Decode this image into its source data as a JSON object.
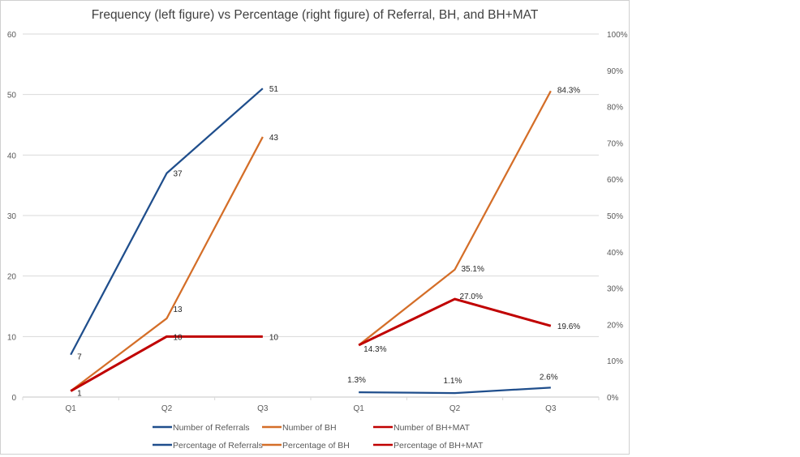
{
  "chart_data": {
    "type": "line",
    "title": "Frequency (left figure) vs Percentage (right figure) of Referral, BH, and BH+MAT",
    "categories": [
      "Q1",
      "Q2",
      "Q3",
      "Q1",
      "Q2",
      "Q3"
    ],
    "left_axis": {
      "ylim": [
        0,
        60
      ],
      "ticks": [
        "0",
        "10",
        "20",
        "30",
        "40",
        "50",
        "60"
      ],
      "grid": true
    },
    "right_axis": {
      "ylim": [
        0,
        100
      ],
      "ticks": [
        "0%",
        "10%",
        "20%",
        "30%",
        "40%",
        "50%",
        "60%",
        "70%",
        "80%",
        "90%",
        "100%"
      ]
    },
    "series": [
      {
        "name": "Number of Referrals",
        "axis": "left",
        "color": "#1F4E8C",
        "x_index": [
          0,
          1,
          2
        ],
        "values": [
          7,
          37,
          51
        ],
        "labels": [
          "7",
          "37",
          "51"
        ]
      },
      {
        "name": "Number of BH",
        "axis": "left",
        "color": "#D46E28",
        "x_index": [
          0,
          1,
          2
        ],
        "values": [
          1,
          13,
          43
        ],
        "labels": [
          "",
          "13",
          "43"
        ]
      },
      {
        "name": "Number of BH+MAT",
        "axis": "left",
        "color": "#C00000",
        "x_index": [
          0,
          1,
          2
        ],
        "values": [
          1,
          10,
          10
        ],
        "labels": [
          "1",
          "10",
          "10"
        ]
      },
      {
        "name": "Percentage of Referrals",
        "axis": "right",
        "color": "#1F4E8C",
        "x_index": [
          3,
          4,
          5
        ],
        "values": [
          1.3,
          1.1,
          2.6
        ],
        "labels": [
          "1.3%",
          "1.1%",
          "2.6%"
        ]
      },
      {
        "name": "Percentage of BH",
        "axis": "right",
        "color": "#D46E28",
        "x_index": [
          3,
          4,
          5
        ],
        "values": [
          14.3,
          35.1,
          84.3
        ],
        "labels": [
          "",
          "35.1%",
          "84.3%"
        ]
      },
      {
        "name": "Percentage of BH+MAT",
        "axis": "right",
        "color": "#C00000",
        "x_index": [
          3,
          4,
          5
        ],
        "values": [
          14.3,
          27.0,
          19.6
        ],
        "labels": [
          "14.3%",
          "27.0%",
          "19.6%"
        ]
      }
    ],
    "legend": {
      "position": "bottom",
      "entries": [
        "Number of Referrals",
        "Number of BH",
        "Number of BH+MAT",
        "Percentage of Referrals",
        "Percentage of BH",
        "Percentage of BH+MAT"
      ]
    },
    "xlabel": "",
    "ylabel": ""
  }
}
